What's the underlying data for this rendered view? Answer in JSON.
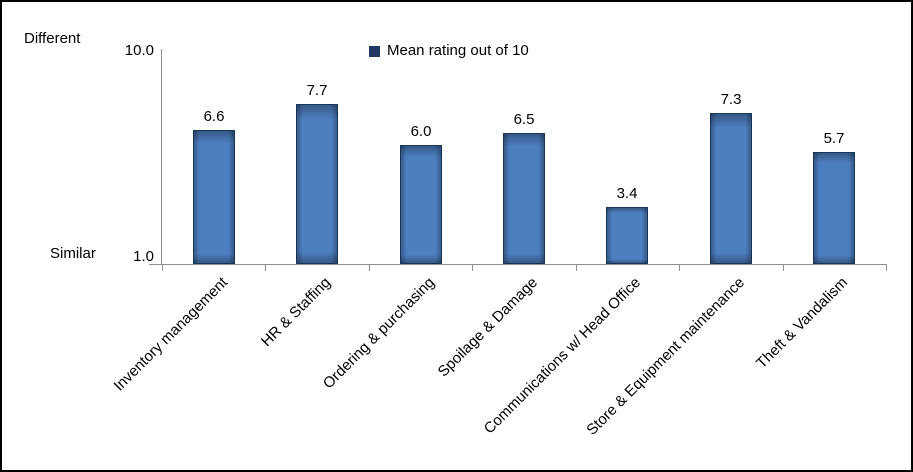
{
  "frame": {
    "background_color": "#ffffff",
    "border_color": "#000000"
  },
  "annotations": {
    "top_left": "Different",
    "bottom_left": "Similar"
  },
  "chart_data": {
    "type": "bar",
    "title": "",
    "categories": [
      "Inventory management",
      "HR & Staffing",
      "Ordering & purchasing",
      "Spoilage & Damage",
      "Communications w/ Head Office",
      "Store & Equipment maintenance",
      "Theft & Vandalism"
    ],
    "values": [
      6.6,
      7.7,
      6.0,
      6.5,
      3.4,
      7.3,
      5.7
    ],
    "value_labels": [
      "6.6",
      "7.7",
      "6.0",
      "6.5",
      "3.4",
      "7.3",
      "5.7"
    ],
    "series_name": "Mean rating out of 10",
    "legend": {
      "label": "Mean rating out of 10",
      "position": "top-center",
      "swatch_color": "#1f3864"
    },
    "y_axis": {
      "min": 1.0,
      "max": 10.0,
      "min_tick_label": "1.0",
      "max_tick_label": "10.0",
      "max_annotation": "Different",
      "min_annotation": "Similar"
    },
    "x_axis": {
      "label_rotation_deg": 45
    },
    "grid": false,
    "ylim": [
      1.0,
      10.0
    ],
    "colors": {
      "bar_fill": "#4d7ec0",
      "bar_border": "#16365c",
      "axis_line": "#8f8f8f",
      "text": "#000000",
      "legend_swatch": "#1f3864"
    }
  }
}
